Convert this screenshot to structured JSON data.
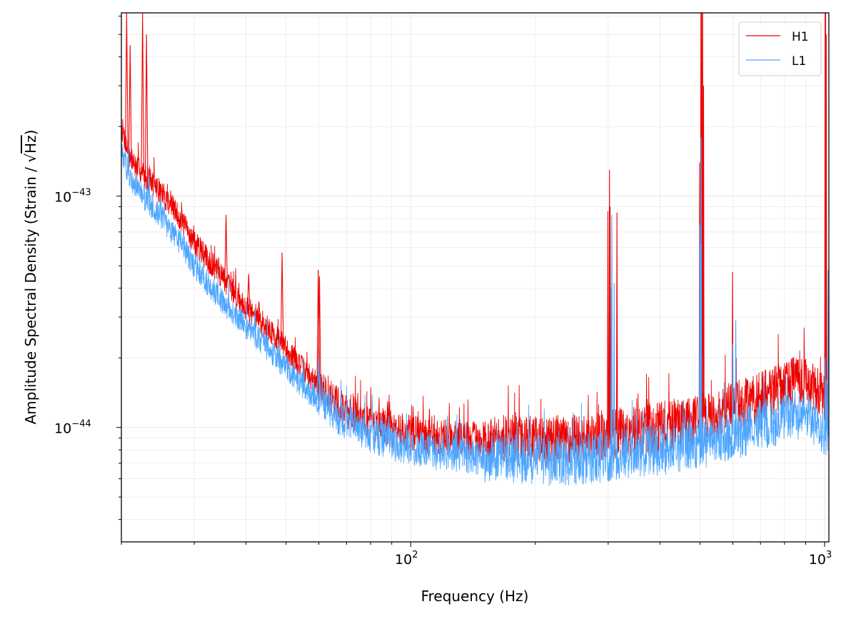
{
  "chart_data": {
    "type": "line",
    "title": "",
    "xlabel": "Frequency (Hz)",
    "ylabel_main": "Amplitude Spectral Density (Strain / ",
    "ylabel_sqrt": "Hz",
    "ylabel_close": ")",
    "xscale": "log",
    "yscale": "log",
    "xlim": [
      20,
      1024
    ],
    "ylim": [
      3.2e-45,
      6.2e-43
    ],
    "grid": true,
    "legend_position": "top-right",
    "x_ticks": [
      {
        "value": 100,
        "base": "10",
        "exp": "2"
      },
      {
        "value": 1000,
        "base": "10",
        "exp": "3"
      }
    ],
    "y_ticks": [
      {
        "value": 1e-44,
        "base": "10",
        "exp": "−44"
      },
      {
        "value": 1e-43,
        "base": "10",
        "exp": "−43"
      }
    ],
    "series": [
      {
        "name": "H1",
        "color": "#ee0000",
        "baseline": [
          [
            20,
            2e-43
          ],
          [
            21,
            1.45e-43
          ],
          [
            22,
            1.3e-43
          ],
          [
            24,
            1.12e-43
          ],
          [
            26,
            9.5e-44
          ],
          [
            28,
            7.8e-44
          ],
          [
            30,
            6.3e-44
          ],
          [
            33,
            5.1e-44
          ],
          [
            36,
            4.2e-44
          ],
          [
            40,
            3.3e-44
          ],
          [
            45,
            2.7e-44
          ],
          [
            50,
            2.2e-44
          ],
          [
            55,
            1.78e-44
          ],
          [
            60,
            1.5e-44
          ],
          [
            65,
            1.32e-44
          ],
          [
            70,
            1.18e-44
          ],
          [
            80,
            1.05e-44
          ],
          [
            90,
            9.8e-45
          ],
          [
            100,
            9.4e-45
          ],
          [
            120,
            9e-45
          ],
          [
            150,
            8.8e-45
          ],
          [
            200,
            8.7e-45
          ],
          [
            250,
            8.9e-45
          ],
          [
            300,
            9.3e-45
          ],
          [
            400,
            1e-44
          ],
          [
            500,
            1.1e-44
          ],
          [
            600,
            1.22e-44
          ],
          [
            700,
            1.35e-44
          ],
          [
            800,
            1.5e-44
          ],
          [
            850,
            1.58e-44
          ],
          [
            900,
            1.55e-44
          ],
          [
            950,
            1.45e-44
          ],
          [
            1000,
            1.35e-44
          ],
          [
            1024,
            1.3e-44
          ]
        ],
        "lines": [
          [
            20.6,
            6.2e-43
          ],
          [
            21.0,
            4.5e-43
          ],
          [
            22.5,
            6.2e-43
          ],
          [
            23.0,
            5e-43
          ],
          [
            28.0,
            8.5e-44
          ],
          [
            30.5,
            6.5e-44
          ],
          [
            35.8,
            8.3e-44
          ],
          [
            40.6,
            4.6e-44
          ],
          [
            43.0,
            3.5e-44
          ],
          [
            48.9,
            5.7e-44
          ],
          [
            59.8,
            4.8e-44
          ],
          [
            60.2,
            4.5e-44
          ],
          [
            88.0,
            1.3e-44
          ],
          [
            111.0,
            1.2e-44
          ],
          [
            299.6,
            8.6e-44
          ],
          [
            302.2,
            1.3e-43
          ],
          [
            303.3,
            9e-44
          ],
          [
            315.1,
            8.5e-44
          ],
          [
            499.0,
            1.4e-43
          ],
          [
            502.6,
            6.2e-43
          ],
          [
            504.8,
            6.2e-43
          ],
          [
            507.5,
            6.2e-43
          ],
          [
            510.0,
            3e-43
          ],
          [
            599.3,
            4.7e-44
          ],
          [
            1003.0,
            6.2e-43
          ],
          [
            1006.0,
            6.2e-43
          ],
          [
            1009.0,
            5e-43
          ]
        ]
      },
      {
        "name": "L1",
        "color": "#4da6ff",
        "baseline": [
          [
            20,
            1.55e-43
          ],
          [
            21,
            1.22e-43
          ],
          [
            22,
            1.05e-43
          ],
          [
            24,
            8.9e-44
          ],
          [
            26,
            7.4e-44
          ],
          [
            28,
            6.2e-44
          ],
          [
            30,
            5e-44
          ],
          [
            33,
            4e-44
          ],
          [
            36,
            3.35e-44
          ],
          [
            40,
            2.75e-44
          ],
          [
            45,
            2.2e-44
          ],
          [
            50,
            1.82e-44
          ],
          [
            55,
            1.5e-44
          ],
          [
            60,
            1.3e-44
          ],
          [
            65,
            1.16e-44
          ],
          [
            70,
            1.05e-44
          ],
          [
            80,
            9.3e-45
          ],
          [
            90,
            8.6e-45
          ],
          [
            100,
            8.2e-45
          ],
          [
            120,
            7.8e-45
          ],
          [
            150,
            7.4e-45
          ],
          [
            200,
            7.2e-45
          ],
          [
            250,
            7.25e-45
          ],
          [
            300,
            7.5e-45
          ],
          [
            400,
            8e-45
          ],
          [
            500,
            8.5e-45
          ],
          [
            600,
            9.3e-45
          ],
          [
            700,
            1.02e-44
          ],
          [
            800,
            1.1e-44
          ],
          [
            850,
            1.15e-44
          ],
          [
            900,
            1.12e-44
          ],
          [
            950,
            1.05e-44
          ],
          [
            1000,
            9.8e-45
          ],
          [
            1024,
            9.5e-45
          ]
        ],
        "lines": [
          [
            59.8,
            2e-44
          ],
          [
            60.3,
            1.7e-44
          ],
          [
            305.3,
            4e-44
          ],
          [
            306.2,
            8.3e-44
          ],
          [
            310.1,
            4.2e-44
          ],
          [
            499.6,
            7.5e-44
          ],
          [
            500.8,
            6.2e-44
          ],
          [
            503.4,
            1.8e-43
          ],
          [
            599.9,
            2.3e-44
          ],
          [
            610.1,
            2.9e-44
          ],
          [
            1003.0,
            2e-44
          ],
          [
            1010.0,
            1.6e-44
          ],
          [
            1019.0,
            4.8e-44
          ]
        ]
      }
    ]
  }
}
